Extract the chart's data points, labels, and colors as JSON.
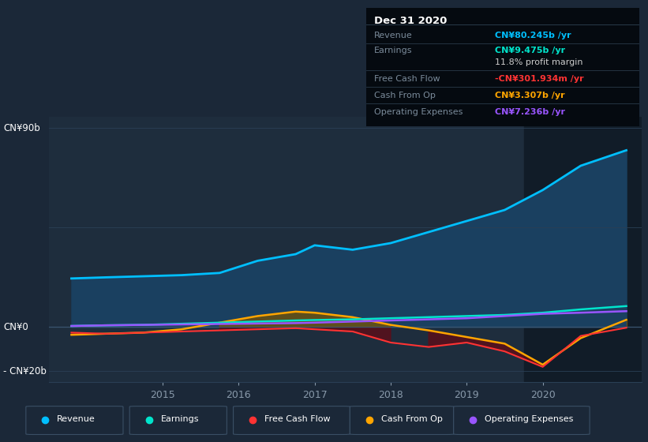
{
  "background_color": "#1b2838",
  "plot_bg_color": "#1e2d3d",
  "grid_color": "#2a3f55",
  "ylim": [
    -25,
    95
  ],
  "xlim": [
    2013.5,
    2021.3
  ],
  "xticks": [
    2015,
    2016,
    2017,
    2018,
    2019,
    2020
  ],
  "years": [
    2013.8,
    2014.25,
    2014.75,
    2015.25,
    2015.75,
    2016.25,
    2016.75,
    2017.0,
    2017.5,
    2018.0,
    2018.5,
    2019.0,
    2019.5,
    2020.0,
    2020.5,
    2021.1
  ],
  "revenue": [
    22,
    22.5,
    23,
    23.5,
    24.5,
    30,
    33,
    37,
    35,
    38,
    43,
    48,
    53,
    62,
    73,
    80
  ],
  "earnings": [
    0.5,
    0.8,
    1.0,
    1.5,
    2.0,
    2.5,
    3.0,
    3.2,
    3.5,
    4.0,
    4.5,
    5.0,
    5.5,
    6.5,
    8.0,
    9.5
  ],
  "free_cash_flow": [
    -2.5,
    -3.0,
    -2.5,
    -2.0,
    -1.5,
    -1.0,
    -0.5,
    -1.0,
    -2.0,
    -7.0,
    -9.0,
    -7.0,
    -11.0,
    -18.0,
    -4.0,
    -0.3
  ],
  "cash_from_op": [
    -3.5,
    -3.0,
    -2.5,
    -1.0,
    2.0,
    5.0,
    7.0,
    6.5,
    4.5,
    1.0,
    -1.5,
    -4.5,
    -7.5,
    -17.0,
    -5.0,
    3.3
  ],
  "operating_expenses": [
    0.5,
    0.8,
    1.0,
    1.2,
    1.4,
    1.6,
    1.8,
    2.0,
    2.5,
    3.0,
    3.5,
    4.0,
    5.0,
    6.0,
    6.5,
    7.2
  ],
  "revenue_color": "#00bfff",
  "revenue_fill": "#1a4060",
  "earnings_color": "#00e5cc",
  "free_cash_flow_color": "#ff3333",
  "free_cash_flow_fill": "#5a0f1a",
  "cash_from_op_color": "#ffa500",
  "cash_from_op_fill_pos": "#7a5500",
  "operating_expenses_color": "#9955ff",
  "highlight_bg": "#111c28",
  "text_color": "#8899aa",
  "legend": [
    {
      "label": "Revenue",
      "color": "#00bfff"
    },
    {
      "label": "Earnings",
      "color": "#00e5cc"
    },
    {
      "label": "Free Cash Flow",
      "color": "#ff3333"
    },
    {
      "label": "Cash From Op",
      "color": "#ffa500"
    },
    {
      "label": "Operating Expenses",
      "color": "#9955ff"
    }
  ],
  "infobox": {
    "date": "Dec 31 2020",
    "rows": [
      {
        "label": "Revenue",
        "value": "CN¥80.245b /yr",
        "value_color": "#00bfff",
        "divider_after": true
      },
      {
        "label": "Earnings",
        "value": "CN¥9.475b /yr",
        "value_color": "#00e5cc",
        "divider_after": false
      },
      {
        "label": "",
        "value": "11.8% profit margin",
        "value_color": "#cccccc",
        "divider_after": true
      },
      {
        "label": "Free Cash Flow",
        "value": "-CN¥301.934m /yr",
        "value_color": "#ff3333",
        "divider_after": true
      },
      {
        "label": "Cash From Op",
        "value": "CN¥3.307b /yr",
        "value_color": "#ffa500",
        "divider_after": true
      },
      {
        "label": "Operating Expenses",
        "value": "CN¥7.236b /yr",
        "value_color": "#9955ff",
        "divider_after": false
      }
    ]
  }
}
